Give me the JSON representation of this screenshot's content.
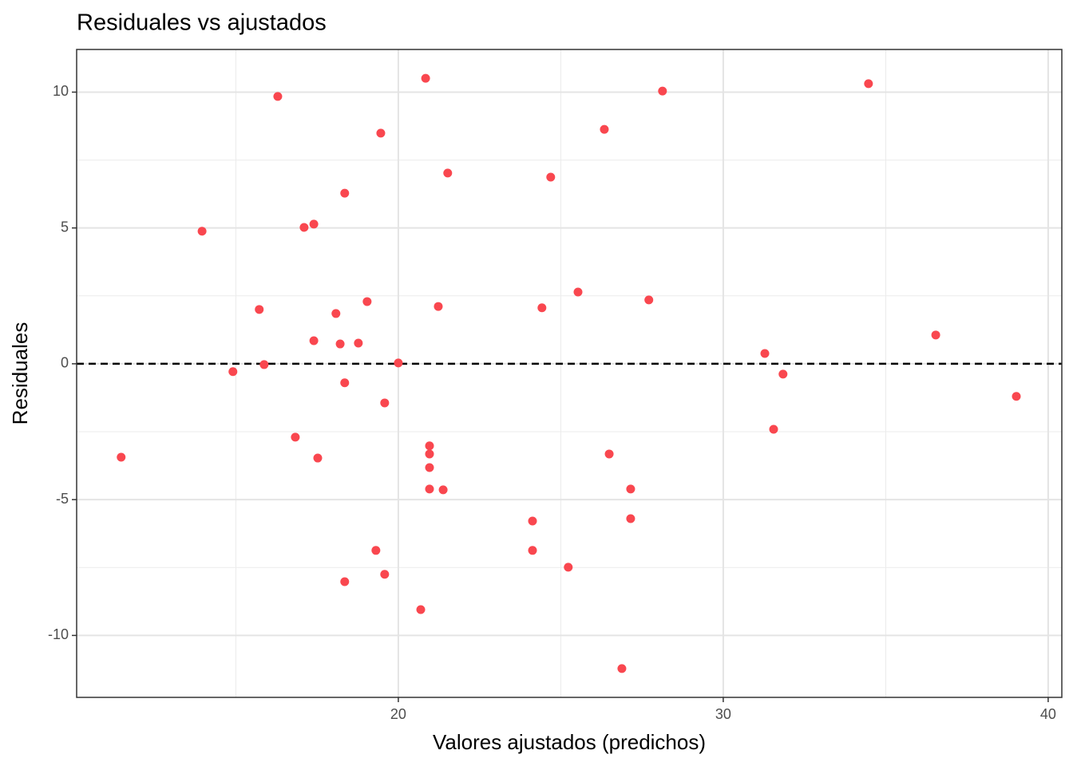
{
  "chart_data": {
    "type": "scatter",
    "title": "Residuales vs ajustados",
    "x_label": "Valores ajustados (predichos)",
    "y_label": "Residuales",
    "color": "#f9474f",
    "grid": true,
    "hline": 0,
    "xlim": [
      10.1,
      40.42
    ],
    "ylim": [
      -12.28,
      11.57
    ],
    "xticks": [
      20,
      30,
      40
    ],
    "yticks": [
      -10,
      -5,
      0,
      5,
      10
    ],
    "x": [
      11.47,
      13.96,
      14.91,
      15.72,
      15.87,
      16.29,
      16.83,
      17.1,
      17.4,
      17.4,
      17.52,
      18.08,
      18.21,
      18.35,
      18.35,
      18.35,
      18.77,
      19.04,
      19.31,
      19.46,
      19.58,
      19.58,
      20.0,
      20.69,
      20.84,
      20.96,
      20.96,
      20.96,
      20.96,
      21.23,
      21.38,
      21.52,
      24.13,
      24.13,
      24.42,
      24.69,
      25.23,
      25.53,
      26.34,
      26.49,
      26.88,
      27.15,
      27.15,
      27.71,
      28.13,
      31.28,
      31.55,
      31.84,
      34.47,
      36.54,
      39.02
    ],
    "values": [
      -3.44,
      4.88,
      -0.29,
      2.0,
      -0.03,
      9.84,
      -2.7,
      5.02,
      5.14,
      0.85,
      -3.47,
      1.85,
      0.73,
      6.28,
      -0.7,
      -8.02,
      0.76,
      2.29,
      -6.87,
      8.49,
      -1.44,
      -7.75,
      0.03,
      -9.05,
      10.51,
      -3.02,
      -3.32,
      -3.82,
      -4.61,
      2.11,
      -4.64,
      7.02,
      -5.79,
      -6.87,
      2.06,
      6.87,
      -7.49,
      2.64,
      8.63,
      -3.32,
      -11.22,
      -4.61,
      -5.7,
      2.35,
      10.04,
      0.38,
      -2.41,
      -0.38,
      10.31,
      1.06,
      -1.2
    ]
  }
}
